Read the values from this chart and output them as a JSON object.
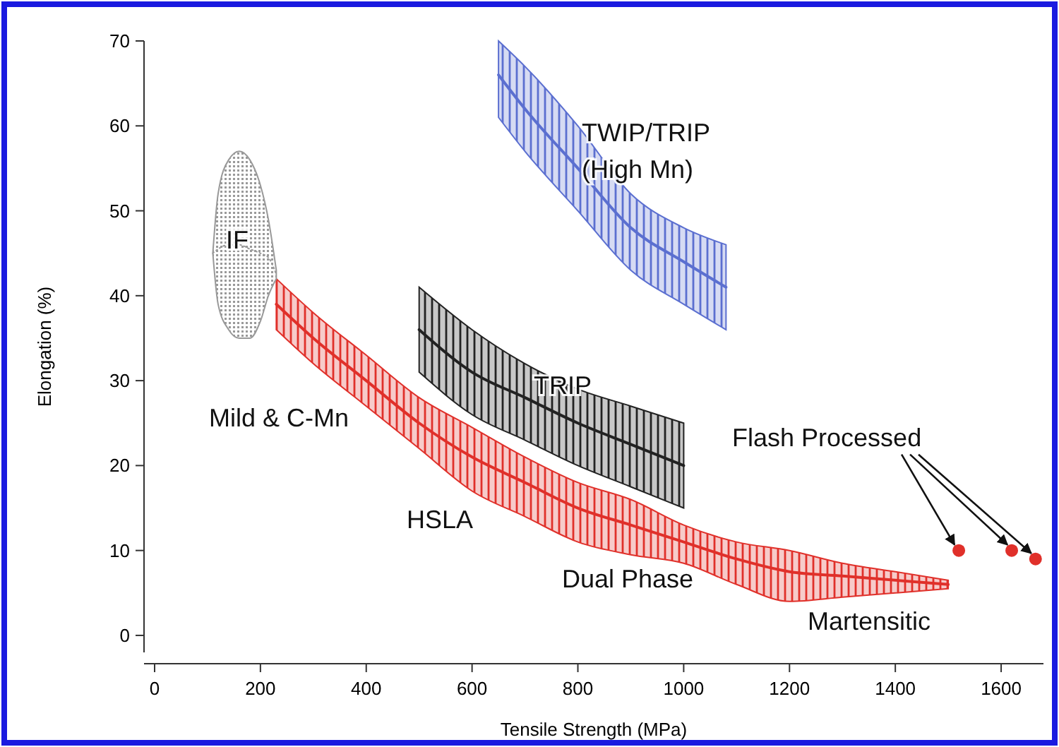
{
  "chart_data": {
    "type": "line",
    "xlabel": "Tensile Strength (MPa)",
    "ylabel": "Elongation (%)",
    "xlim": [
      -20,
      1680
    ],
    "ylim": [
      -2,
      70
    ],
    "xticks": [
      0,
      200,
      400,
      600,
      800,
      1000,
      1200,
      1400,
      1600
    ],
    "yticks": [
      0,
      10,
      20,
      30,
      40,
      50,
      60,
      70
    ],
    "grid": false,
    "series": [
      {
        "color": "#5b6fd0",
        "x": [
          650,
          700,
          800,
          900,
          1000,
          1080
        ],
        "values": [
          66,
          62,
          55,
          48,
          44,
          41
        ],
        "lower": [
          61,
          57,
          50,
          43,
          39,
          36
        ],
        "upper": [
          70,
          67,
          60,
          52,
          48,
          46
        ]
      },
      {
        "color": "#222222",
        "x": [
          500,
          600,
          700,
          800,
          900,
          1000
        ],
        "values": [
          36,
          31,
          28,
          25,
          22.5,
          20
        ],
        "lower": [
          31,
          26,
          23,
          20,
          17.5,
          15
        ],
        "upper": [
          41,
          36,
          32,
          29,
          27,
          25
        ]
      },
      {
        "color": "#e0302a",
        "x": [
          230,
          300,
          400,
          500,
          600,
          700,
          800,
          900,
          1000,
          1100,
          1200,
          1300,
          1400,
          1500
        ],
        "values": [
          39,
          35,
          30,
          25,
          21,
          18,
          15,
          13,
          11,
          9,
          7.5,
          7,
          6.5,
          6
        ],
        "lower": [
          36,
          32,
          27,
          22,
          17,
          14,
          11,
          9.5,
          8.5,
          6,
          4,
          4.5,
          5,
          5.5
        ],
        "upper": [
          42,
          38,
          33,
          28,
          24.5,
          21,
          18,
          16,
          13,
          11,
          10,
          8.5,
          7.5,
          6.5
        ]
      },
      {
        "color": "#999999",
        "line_style": "dotted",
        "x": [
          110,
          120,
          140,
          160,
          180,
          200,
          215,
          230
        ],
        "values": [
          45,
          45.5,
          46,
          46,
          45.5,
          45,
          44.5,
          42.5
        ],
        "lower": [
          45,
          39,
          36,
          35,
          35,
          37,
          40,
          42
        ],
        "upper": [
          45,
          52,
          56,
          57,
          56,
          53,
          49,
          43
        ]
      },
      {
        "type": "scatter",
        "color": "#e0302a",
        "marker": "circle",
        "x": [
          1520,
          1620,
          1665
        ],
        "values": [
          10,
          10,
          9
        ]
      }
    ],
    "annotations": [
      "TWIP/TRIP\n(High Mn)",
      "IF",
      "TRIP",
      "Mild & C-Mn",
      "HSLA",
      "Dual Phase",
      "Martensitic",
      {
        "text": "Flash Processed",
        "x": 1620,
        "y": 10
      }
    ]
  }
}
